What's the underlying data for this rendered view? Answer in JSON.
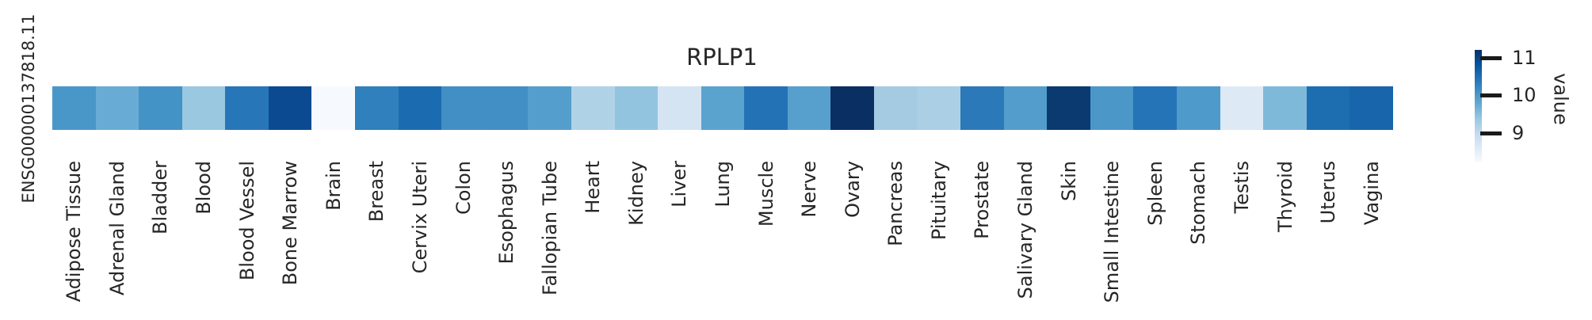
{
  "chart_data": {
    "type": "heatmap",
    "title": "RPLP1",
    "row_label": "ENSG00000137818.11",
    "colormap": "Blues",
    "rows": 1,
    "columns": 31,
    "categories": [
      "Adipose Tissue",
      "Adrenal Gland",
      "Bladder",
      "Blood",
      "Blood Vessel",
      "Bone Marrow",
      "Brain",
      "Breast",
      "Cervix Uteri",
      "Colon",
      "Esophagus",
      "Fallopian Tube",
      "Heart",
      "Kidney",
      "Liver",
      "Lung",
      "Muscle",
      "Nerve",
      "Ovary",
      "Pancreas",
      "Pituitary",
      "Prostate",
      "Salivary Gland",
      "Skin",
      "Small Intestine",
      "Spleen",
      "Stomach",
      "Testis",
      "Thyroid",
      "Uterus",
      "Vagina"
    ],
    "values": [
      10.0,
      9.7,
      10.1,
      9.3,
      10.4,
      10.9,
      8.3,
      10.3,
      10.5,
      10.1,
      10.1,
      9.9,
      9.2,
      9.4,
      8.7,
      9.8,
      10.4,
      9.9,
      11.2,
      9.3,
      9.2,
      10.4,
      9.9,
      11.1,
      10.0,
      10.4,
      9.9,
      8.6,
      9.6,
      10.5,
      10.6
    ],
    "cell_colors": [
      "#4997c9",
      "#68acd5",
      "#4493c7",
      "#9ac8e0",
      "#2776b8",
      "#0b4a90",
      "#f6fafe",
      "#2f80bc",
      "#1b6bb1",
      "#428fc5",
      "#418fc4",
      "#549ecd",
      "#b0d2e7",
      "#93c4df",
      "#d4e4f2",
      "#5ba3cf",
      "#2472b6",
      "#57a0cd",
      "#0a2f63",
      "#a5cbe3",
      "#abcfe5",
      "#2b79b9",
      "#539dcc",
      "#0a3a70",
      "#4a97c8",
      "#2474b7",
      "#4e9aca",
      "#dde9f5",
      "#7fb9da",
      "#1d6db1",
      "#1865ac"
    ],
    "legend_position": "right",
    "grid": false,
    "value_range": [
      8.2,
      11.2
    ]
  },
  "colorbar": {
    "label": "value",
    "tick_labels": [
      "11",
      "10",
      "9"
    ],
    "tick_values": [
      11,
      10,
      9
    ],
    "gradient_top_color": "#08306b",
    "gradient_bottom_color": "#f7fbff"
  }
}
